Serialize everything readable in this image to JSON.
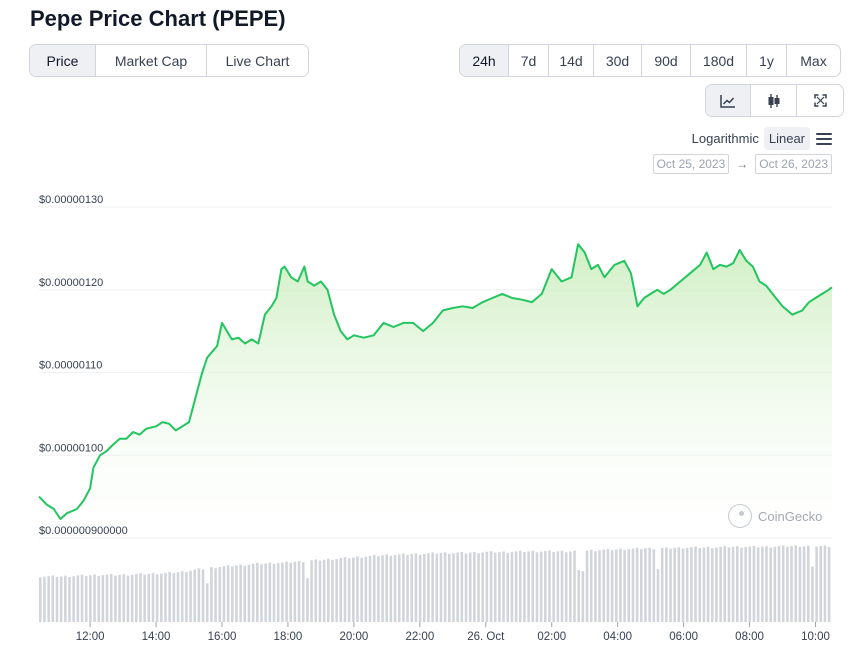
{
  "title": "Pepe Price Chart (PEPE)",
  "type_tabs": [
    {
      "label": "Price",
      "active": true
    },
    {
      "label": "Market Cap",
      "active": false
    },
    {
      "label": "Live Chart",
      "active": false
    }
  ],
  "range_tabs": [
    {
      "label": "24h",
      "active": true
    },
    {
      "label": "7d",
      "active": false
    },
    {
      "label": "14d",
      "active": false
    },
    {
      "label": "30d",
      "active": false
    },
    {
      "label": "90d",
      "active": false
    },
    {
      "label": "180d",
      "active": false
    },
    {
      "label": "1y",
      "active": false
    },
    {
      "label": "Max",
      "active": false
    }
  ],
  "view_buttons": [
    {
      "icon": "line-chart-icon",
      "active": true
    },
    {
      "icon": "candlestick-icon",
      "active": false
    },
    {
      "icon": "fullscreen-icon",
      "active": false
    }
  ],
  "scale": {
    "log_label": "Logarithmic",
    "linear_label": "Linear",
    "selected": "Linear"
  },
  "date_range": {
    "from": "Oct 25, 2023",
    "arrow": "→",
    "to": "Oct 26, 2023"
  },
  "watermark": "CoinGecko",
  "colors": {
    "line": "#22c55e",
    "fill_top": "#cdeec0",
    "volume": "#d1d5db",
    "grid": "#eef0f2"
  },
  "chart_data": {
    "type": "area",
    "title": "",
    "xlabel": "",
    "ylabel": "",
    "y_ticks": [
      "$0.000000900000",
      "$0.00000100",
      "$0.00000110",
      "$0.00000120",
      "$0.00000130"
    ],
    "y_tick_values": [
      9e-07,
      1e-06,
      1.1e-06,
      1.2e-06,
      1.3e-06
    ],
    "ylim": [
      9e-07,
      1.3e-06
    ],
    "x_ticks": [
      "12:00",
      "14:00",
      "16:00",
      "18:00",
      "20:00",
      "22:00",
      "26. Oct",
      "02:00",
      "04:00",
      "06:00",
      "08:00",
      "10:00"
    ],
    "x_tick_hours": [
      12,
      14,
      16,
      18,
      20,
      22,
      24,
      26,
      28,
      30,
      32,
      34
    ],
    "xlim_hours": [
      10.45,
      34.5
    ],
    "grid": true,
    "series": [
      {
        "points_hours": [
          10.45,
          10.7,
          10.9,
          11.1,
          11.3,
          11.6,
          11.8,
          12.0,
          12.1,
          12.3,
          12.5,
          12.7,
          12.9,
          13.1,
          13.3,
          13.5,
          13.7,
          14.0,
          14.2,
          14.4,
          14.6,
          14.8,
          15.0,
          15.2,
          15.4,
          15.55,
          15.7,
          15.85,
          16.0,
          16.15,
          16.3,
          16.5,
          16.7,
          16.9,
          17.1,
          17.3,
          17.5,
          17.65,
          17.8,
          17.9,
          18.1,
          18.3,
          18.5,
          18.6,
          18.8,
          19.0,
          19.2,
          19.4,
          19.6,
          19.8,
          20.0,
          20.3,
          20.6,
          20.9,
          21.2,
          21.5,
          21.8,
          22.1,
          22.4,
          22.7,
          23.0,
          23.3,
          23.6,
          23.9,
          24.2,
          24.5,
          24.8,
          25.1,
          25.4,
          25.7,
          26.0,
          26.3,
          26.6,
          26.8,
          27.0,
          27.2,
          27.4,
          27.6,
          27.9,
          28.2,
          28.4,
          28.6,
          28.8,
          29.0,
          29.2,
          29.4,
          29.6,
          29.9,
          30.2,
          30.5,
          30.7,
          30.9,
          31.1,
          31.3,
          31.5,
          31.7,
          31.9,
          32.1,
          32.3,
          32.5,
          32.7,
          33.0,
          33.3,
          33.6,
          33.8,
          34.0,
          34.2,
          34.4,
          34.5
        ],
        "values": [
          9.5e-07,
          9.4e-07,
          9.35e-07,
          9.23e-07,
          9.3e-07,
          9.35e-07,
          9.45e-07,
          9.6e-07,
          9.85e-07,
          1e-06,
          1.005e-06,
          1.013e-06,
          1.02e-06,
          1.02e-06,
          1.028e-06,
          1.025e-06,
          1.032e-06,
          1.035e-06,
          1.04e-06,
          1.038e-06,
          1.03e-06,
          1.035e-06,
          1.04e-06,
          1.07e-06,
          1.1e-06,
          1.118e-06,
          1.125e-06,
          1.132e-06,
          1.16e-06,
          1.15e-06,
          1.14e-06,
          1.142e-06,
          1.135e-06,
          1.14e-06,
          1.135e-06,
          1.17e-06,
          1.18e-06,
          1.19e-06,
          1.225e-06,
          1.228e-06,
          1.215e-06,
          1.21e-06,
          1.228e-06,
          1.21e-06,
          1.205e-06,
          1.21e-06,
          1.2e-06,
          1.17e-06,
          1.15e-06,
          1.14e-06,
          1.145e-06,
          1.142e-06,
          1.145e-06,
          1.16e-06,
          1.155e-06,
          1.16e-06,
          1.16e-06,
          1.15e-06,
          1.16e-06,
          1.175e-06,
          1.178e-06,
          1.18e-06,
          1.178e-06,
          1.185e-06,
          1.19e-06,
          1.195e-06,
          1.19e-06,
          1.188e-06,
          1.185e-06,
          1.195e-06,
          1.225e-06,
          1.21e-06,
          1.215e-06,
          1.255e-06,
          1.245e-06,
          1.225e-06,
          1.23e-06,
          1.215e-06,
          1.23e-06,
          1.235e-06,
          1.22e-06,
          1.18e-06,
          1.19e-06,
          1.195e-06,
          1.2e-06,
          1.195e-06,
          1.2e-06,
          1.21e-06,
          1.22e-06,
          1.23e-06,
          1.245e-06,
          1.225e-06,
          1.23e-06,
          1.228e-06,
          1.232e-06,
          1.248e-06,
          1.235e-06,
          1.228e-06,
          1.21e-06,
          1.205e-06,
          1.195e-06,
          1.18e-06,
          1.17e-06,
          1.175e-06,
          1.185e-06,
          1.19e-06,
          1.195e-06,
          1.2e-06,
          1.203e-06
        ]
      }
    ],
    "volume_series": {
      "start_hour": 10.45,
      "end_hour": 34.5,
      "levels": [
        0.6,
        0.6,
        0.61,
        0.62,
        0.62,
        0.63,
        0.64,
        0.66,
        0.7,
        0.73,
        0.75,
        0.77,
        0.78,
        0.8,
        0.82,
        0.84,
        0.86,
        0.88,
        0.89,
        0.9,
        0.91,
        0.91,
        0.92,
        0.92,
        0.93,
        0.93,
        0.93,
        0.94,
        0.95,
        0.96,
        0.97,
        0.97,
        0.98,
        0.98,
        0.99,
        0.99,
        0.99,
        1.0,
        1.0,
        1.0
      ],
      "dips_hours": [
        15.55,
        18.6,
        26.9,
        29.2,
        33.9
      ]
    }
  }
}
